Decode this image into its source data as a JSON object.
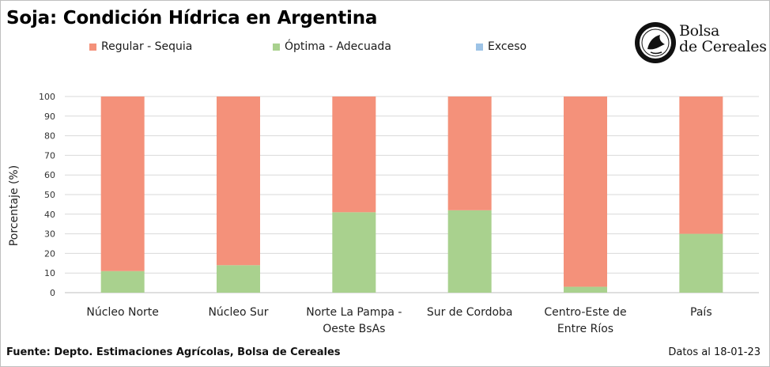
{
  "chart_data": {
    "type": "bar",
    "stacked": true,
    "title": "Soja: Condición Hídrica en Argentina",
    "ylabel": "Porcentaje (%)",
    "xlabel": "",
    "ylim": [
      0,
      100
    ],
    "yticks": [
      0,
      10,
      20,
      30,
      40,
      50,
      60,
      70,
      80,
      90,
      100
    ],
    "grid": true,
    "legend_position": "top",
    "categories": [
      [
        "Núcleo Norte"
      ],
      [
        "Núcleo Sur"
      ],
      [
        "Norte La Pampa -",
        "Oeste BsAs"
      ],
      [
        "Sur de Cordoba"
      ],
      [
        "Centro-Este de",
        "Entre Ríos"
      ],
      [
        "País"
      ]
    ],
    "series": [
      {
        "name": "Óptima - Adecuada",
        "color": "#a9d18e",
        "values": [
          11,
          14,
          41,
          42,
          3,
          30
        ]
      },
      {
        "name": "Regular - Sequia",
        "color": "#f4917a",
        "values": [
          89,
          86,
          59,
          58,
          97,
          70
        ]
      },
      {
        "name": "Exceso",
        "color": "#9dc3e6",
        "values": [
          0,
          0,
          0,
          0,
          0,
          0
        ]
      }
    ]
  },
  "legend": [
    {
      "label": "Regular - Sequia",
      "color": "#f4917a"
    },
    {
      "label": "Óptima - Adecuada",
      "color": "#a9d18e"
    },
    {
      "label": "Exceso",
      "color": "#9dc3e6"
    }
  ],
  "logo": {
    "line1": "Bolsa",
    "line2": "de Cereales"
  },
  "footer": {
    "source": "Fuente: Depto. Estimaciones Agrícolas, Bolsa de Cereales",
    "date": "Datos al 18-01-23"
  }
}
